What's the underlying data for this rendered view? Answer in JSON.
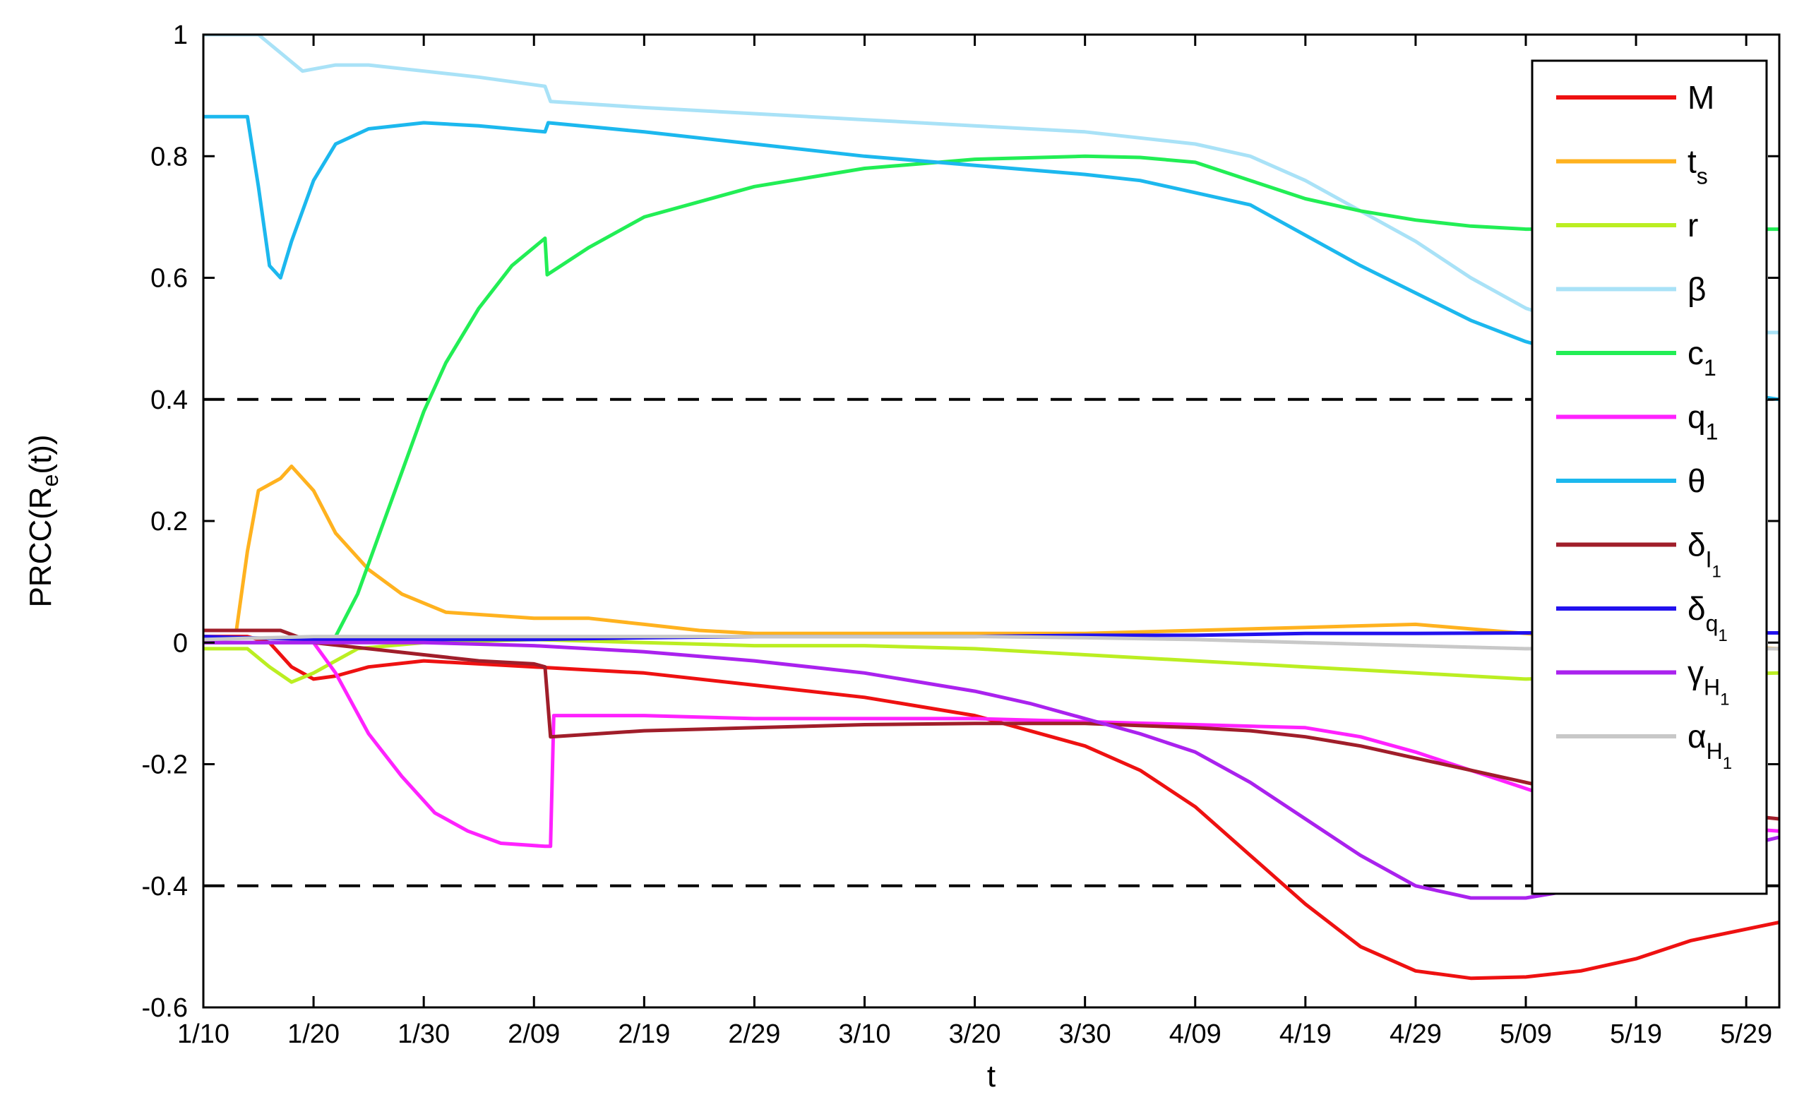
{
  "chart_data": {
    "type": "line",
    "title": "",
    "xlabel": "t",
    "ylabel": {
      "main": "PRCC(R",
      "sub": "e",
      "tail": "(t))"
    },
    "x_unit": "days from 1/10",
    "xlim": [
      0,
      143
    ],
    "ylim": [
      -0.6,
      1
    ],
    "yticks": [
      -0.6,
      -0.4,
      -0.2,
      0,
      0.2,
      0.4,
      0.6,
      0.8,
      1
    ],
    "ytick_labels": [
      "-0.6",
      "-0.4",
      "-0.2",
      "0",
      "0.2",
      "0.4",
      "0.6",
      "0.8",
      "1"
    ],
    "xticks": [
      0,
      10,
      20,
      30,
      40,
      50,
      60,
      70,
      80,
      90,
      100,
      110,
      120,
      130,
      140
    ],
    "xtick_labels": [
      "1/10",
      "1/20",
      "1/30",
      "2/09",
      "2/19",
      "2/29",
      "3/10",
      "3/20",
      "3/30",
      "4/09",
      "4/19",
      "4/29",
      "5/09",
      "5/19",
      "5/29"
    ],
    "grid": false,
    "legend_position": "right",
    "reference_lines": [
      {
        "y": 0.4,
        "style": "dashed",
        "color": "#000000"
      },
      {
        "y": -0.4,
        "style": "dashed",
        "color": "#000000"
      }
    ],
    "series": [
      {
        "name": "M",
        "sub": "",
        "subsub": "",
        "color": "#ee1111",
        "points": [
          [
            0,
            0.01
          ],
          [
            4,
            0.01
          ],
          [
            6,
            0.0
          ],
          [
            8,
            -0.04
          ],
          [
            10,
            -0.06
          ],
          [
            12,
            -0.055
          ],
          [
            15,
            -0.04
          ],
          [
            20,
            -0.03
          ],
          [
            25,
            -0.035
          ],
          [
            30,
            -0.04
          ],
          [
            40,
            -0.05
          ],
          [
            50,
            -0.07
          ],
          [
            60,
            -0.09
          ],
          [
            70,
            -0.12
          ],
          [
            80,
            -0.17
          ],
          [
            85,
            -0.21
          ],
          [
            90,
            -0.27
          ],
          [
            95,
            -0.35
          ],
          [
            100,
            -0.43
          ],
          [
            105,
            -0.5
          ],
          [
            110,
            -0.54
          ],
          [
            115,
            -0.552
          ],
          [
            120,
            -0.55
          ],
          [
            125,
            -0.54
          ],
          [
            130,
            -0.52
          ],
          [
            135,
            -0.49
          ],
          [
            143,
            -0.46
          ]
        ]
      },
      {
        "name": "t",
        "sub": "s",
        "subsub": "",
        "color": "#ffb21f",
        "points": [
          [
            0,
            0.02
          ],
          [
            3,
            0.02
          ],
          [
            4,
            0.15
          ],
          [
            5,
            0.25
          ],
          [
            7,
            0.27
          ],
          [
            8,
            0.29
          ],
          [
            10,
            0.25
          ],
          [
            12,
            0.18
          ],
          [
            15,
            0.12
          ],
          [
            18,
            0.08
          ],
          [
            22,
            0.05
          ],
          [
            30,
            0.04
          ],
          [
            35,
            0.04
          ],
          [
            40,
            0.03
          ],
          [
            45,
            0.02
          ],
          [
            50,
            0.015
          ],
          [
            60,
            0.015
          ],
          [
            70,
            0.015
          ],
          [
            80,
            0.015
          ],
          [
            90,
            0.02
          ],
          [
            100,
            0.025
          ],
          [
            110,
            0.03
          ],
          [
            120,
            0.015
          ],
          [
            130,
            0.0
          ],
          [
            143,
            -0.01
          ]
        ]
      },
      {
        "name": "r",
        "sub": "",
        "subsub": "",
        "color": "#bbee22",
        "points": [
          [
            0,
            -0.01
          ],
          [
            4,
            -0.01
          ],
          [
            6,
            -0.04
          ],
          [
            8,
            -0.065
          ],
          [
            10,
            -0.05
          ],
          [
            14,
            -0.01
          ],
          [
            20,
            0.0
          ],
          [
            30,
            0.005
          ],
          [
            40,
            0.0
          ],
          [
            50,
            -0.005
          ],
          [
            60,
            -0.005
          ],
          [
            70,
            -0.01
          ],
          [
            80,
            -0.02
          ],
          [
            90,
            -0.03
          ],
          [
            100,
            -0.04
          ],
          [
            110,
            -0.05
          ],
          [
            120,
            -0.06
          ],
          [
            130,
            -0.055
          ],
          [
            143,
            -0.05
          ]
        ]
      },
      {
        "name": "β",
        "sub": "",
        "subsub": "",
        "color": "#a9e2f7",
        "points": [
          [
            0,
            1.0
          ],
          [
            5,
            1.0
          ],
          [
            7,
            0.97
          ],
          [
            9,
            0.94
          ],
          [
            12,
            0.95
          ],
          [
            15,
            0.95
          ],
          [
            20,
            0.94
          ],
          [
            25,
            0.93
          ],
          [
            31,
            0.915
          ],
          [
            31.5,
            0.89
          ],
          [
            40,
            0.88
          ],
          [
            50,
            0.87
          ],
          [
            60,
            0.86
          ],
          [
            70,
            0.85
          ],
          [
            80,
            0.84
          ],
          [
            90,
            0.82
          ],
          [
            95,
            0.8
          ],
          [
            100,
            0.76
          ],
          [
            105,
            0.71
          ],
          [
            110,
            0.66
          ],
          [
            115,
            0.6
          ],
          [
            120,
            0.55
          ],
          [
            125,
            0.52
          ],
          [
            130,
            0.51
          ],
          [
            143,
            0.51
          ]
        ]
      },
      {
        "name": "c",
        "sub": "1",
        "subsub": "",
        "color": "#22ee55",
        "points": [
          [
            0,
            0.0
          ],
          [
            10,
            0.0
          ],
          [
            12,
            0.01
          ],
          [
            14,
            0.08
          ],
          [
            16,
            0.18
          ],
          [
            18,
            0.28
          ],
          [
            20,
            0.38
          ],
          [
            22,
            0.46
          ],
          [
            25,
            0.55
          ],
          [
            28,
            0.62
          ],
          [
            31,
            0.665
          ],
          [
            31.2,
            0.605
          ],
          [
            35,
            0.65
          ],
          [
            40,
            0.7
          ],
          [
            50,
            0.75
          ],
          [
            60,
            0.78
          ],
          [
            70,
            0.795
          ],
          [
            80,
            0.8
          ],
          [
            85,
            0.798
          ],
          [
            90,
            0.79
          ],
          [
            95,
            0.76
          ],
          [
            100,
            0.73
          ],
          [
            105,
            0.71
          ],
          [
            110,
            0.695
          ],
          [
            115,
            0.685
          ],
          [
            120,
            0.68
          ],
          [
            130,
            0.68
          ],
          [
            143,
            0.68
          ]
        ]
      },
      {
        "name": "q",
        "sub": "1",
        "subsub": "",
        "color": "#ff22ff",
        "points": [
          [
            0,
            0.0
          ],
          [
            8,
            0.0
          ],
          [
            10,
            0.0
          ],
          [
            12,
            -0.05
          ],
          [
            15,
            -0.15
          ],
          [
            18,
            -0.22
          ],
          [
            21,
            -0.28
          ],
          [
            24,
            -0.31
          ],
          [
            27,
            -0.33
          ],
          [
            31,
            -0.335
          ],
          [
            31.5,
            -0.335
          ],
          [
            31.8,
            -0.12
          ],
          [
            40,
            -0.12
          ],
          [
            50,
            -0.125
          ],
          [
            60,
            -0.125
          ],
          [
            70,
            -0.125
          ],
          [
            80,
            -0.13
          ],
          [
            90,
            -0.135
          ],
          [
            100,
            -0.14
          ],
          [
            105,
            -0.155
          ],
          [
            110,
            -0.18
          ],
          [
            115,
            -0.21
          ],
          [
            120,
            -0.24
          ],
          [
            125,
            -0.27
          ],
          [
            130,
            -0.29
          ],
          [
            135,
            -0.3
          ],
          [
            143,
            -0.31
          ]
        ]
      },
      {
        "name": "θ",
        "sub": "",
        "subsub": "",
        "color": "#1cb8ee",
        "points": [
          [
            0,
            0.865
          ],
          [
            4,
            0.865
          ],
          [
            5,
            0.75
          ],
          [
            6,
            0.62
          ],
          [
            7,
            0.6
          ],
          [
            8,
            0.66
          ],
          [
            10,
            0.76
          ],
          [
            12,
            0.82
          ],
          [
            15,
            0.845
          ],
          [
            20,
            0.855
          ],
          [
            25,
            0.85
          ],
          [
            31,
            0.84
          ],
          [
            31.3,
            0.855
          ],
          [
            40,
            0.84
          ],
          [
            50,
            0.82
          ],
          [
            60,
            0.8
          ],
          [
            70,
            0.785
          ],
          [
            80,
            0.77
          ],
          [
            85,
            0.76
          ],
          [
            90,
            0.74
          ],
          [
            95,
            0.72
          ],
          [
            100,
            0.67
          ],
          [
            105,
            0.62
          ],
          [
            110,
            0.575
          ],
          [
            115,
            0.53
          ],
          [
            120,
            0.495
          ],
          [
            125,
            0.47
          ],
          [
            130,
            0.44
          ],
          [
            135,
            0.42
          ],
          [
            143,
            0.4
          ]
        ]
      },
      {
        "name": "δ",
        "sub": "I",
        "subsub": "1",
        "color": "#a01e2a",
        "points": [
          [
            0,
            0.02
          ],
          [
            5,
            0.02
          ],
          [
            7,
            0.02
          ],
          [
            10,
            0.0
          ],
          [
            15,
            -0.01
          ],
          [
            20,
            -0.02
          ],
          [
            25,
            -0.03
          ],
          [
            30,
            -0.035
          ],
          [
            31,
            -0.04
          ],
          [
            31.5,
            -0.155
          ],
          [
            40,
            -0.145
          ],
          [
            50,
            -0.14
          ],
          [
            60,
            -0.135
          ],
          [
            70,
            -0.133
          ],
          [
            80,
            -0.133
          ],
          [
            90,
            -0.14
          ],
          [
            95,
            -0.145
          ],
          [
            100,
            -0.155
          ],
          [
            105,
            -0.17
          ],
          [
            110,
            -0.19
          ],
          [
            115,
            -0.21
          ],
          [
            120,
            -0.23
          ],
          [
            125,
            -0.25
          ],
          [
            130,
            -0.265
          ],
          [
            135,
            -0.275
          ],
          [
            143,
            -0.29
          ]
        ]
      },
      {
        "name": "δ",
        "sub": "q",
        "subsub": "1",
        "color": "#2211ee",
        "points": [
          [
            0,
            0.01
          ],
          [
            10,
            0.005
          ],
          [
            20,
            0.005
          ],
          [
            30,
            0.005
          ],
          [
            40,
            0.008
          ],
          [
            50,
            0.01
          ],
          [
            60,
            0.01
          ],
          [
            70,
            0.01
          ],
          [
            80,
            0.012
          ],
          [
            90,
            0.012
          ],
          [
            100,
            0.015
          ],
          [
            110,
            0.015
          ],
          [
            120,
            0.016
          ],
          [
            130,
            0.016
          ],
          [
            143,
            0.016
          ]
        ]
      },
      {
        "name": "γ",
        "sub": "H",
        "subsub": "1",
        "color": "#aa22ee",
        "points": [
          [
            0,
            0.0
          ],
          [
            10,
            0.0
          ],
          [
            20,
            0.0
          ],
          [
            30,
            -0.005
          ],
          [
            40,
            -0.015
          ],
          [
            50,
            -0.03
          ],
          [
            60,
            -0.05
          ],
          [
            70,
            -0.08
          ],
          [
            75,
            -0.1
          ],
          [
            80,
            -0.125
          ],
          [
            85,
            -0.15
          ],
          [
            90,
            -0.18
          ],
          [
            95,
            -0.23
          ],
          [
            100,
            -0.29
          ],
          [
            105,
            -0.35
          ],
          [
            110,
            -0.4
          ],
          [
            115,
            -0.42
          ],
          [
            120,
            -0.42
          ],
          [
            125,
            -0.405
          ],
          [
            130,
            -0.38
          ],
          [
            135,
            -0.355
          ],
          [
            143,
            -0.32
          ]
        ]
      },
      {
        "name": "α",
        "sub": "H",
        "subsub": "1",
        "color": "#c8c8c8",
        "points": [
          [
            0,
            0.005
          ],
          [
            10,
            0.01
          ],
          [
            20,
            0.01
          ],
          [
            30,
            0.01
          ],
          [
            40,
            0.01
          ],
          [
            50,
            0.01
          ],
          [
            60,
            0.01
          ],
          [
            70,
            0.01
          ],
          [
            80,
            0.008
          ],
          [
            90,
            0.005
          ],
          [
            100,
            0.0
          ],
          [
            110,
            -0.005
          ],
          [
            120,
            -0.01
          ],
          [
            130,
            -0.01
          ],
          [
            143,
            -0.01
          ]
        ]
      }
    ]
  }
}
